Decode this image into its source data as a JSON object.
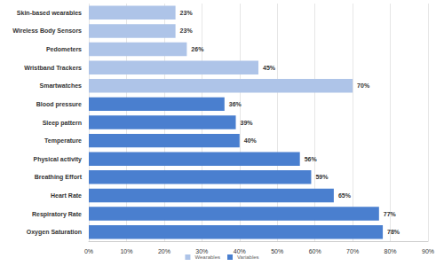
{
  "chart_data": {
    "type": "bar",
    "orientation": "horizontal",
    "categories": [
      "Skin-based wearables",
      "Wireless Body Sensors",
      "Pedometers",
      "Wristband Trackers",
      "Smartwatches",
      "Blood pressure",
      "Sleep pattern",
      "Temperature",
      "Physical activity",
      "Breathing Effort",
      "Heart Rate",
      "Respiratory Rate",
      "Oxygen Saturation"
    ],
    "series": [
      {
        "name": "Wearables",
        "color": "#aec4e8",
        "values": [
          23,
          23,
          26,
          45,
          70,
          null,
          null,
          null,
          null,
          null,
          null,
          null,
          null
        ],
        "value_labels": [
          "23%",
          "23%",
          "26%",
          "45%",
          "70%",
          null,
          null,
          null,
          null,
          null,
          null,
          null,
          null
        ]
      },
      {
        "name": "Variables",
        "color": "#4a7fcf",
        "values": [
          null,
          null,
          null,
          null,
          null,
          36,
          39,
          40,
          56,
          59,
          65,
          77,
          78
        ],
        "value_labels": [
          null,
          null,
          null,
          null,
          null,
          "36%",
          "39%",
          "40%",
          "56%",
          "59%",
          "65%",
          "77%",
          "78%"
        ]
      }
    ],
    "xlim": [
      0,
      90
    ],
    "xticks": [
      {
        "value": 0,
        "label": "0%"
      },
      {
        "value": 10,
        "label": "10%"
      },
      {
        "value": 20,
        "label": "20%"
      },
      {
        "value": 30,
        "label": "30%"
      },
      {
        "value": 40,
        "label": "40%"
      },
      {
        "value": 50,
        "label": "50%"
      },
      {
        "value": 60,
        "label": "60%"
      },
      {
        "value": 70,
        "label": "70%"
      },
      {
        "value": 80,
        "label": "80%"
      },
      {
        "value": 90,
        "label": "90%"
      }
    ],
    "grid": true,
    "legend": "bottom",
    "data_labels": true
  }
}
